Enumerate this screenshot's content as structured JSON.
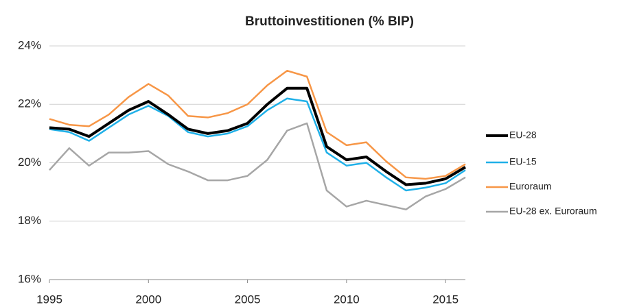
{
  "chart_data": {
    "type": "line",
    "title": "Bruttoinvestitionen (% BIP)",
    "x": [
      1995,
      1996,
      1997,
      1998,
      1999,
      2000,
      2001,
      2002,
      2003,
      2004,
      2005,
      2006,
      2007,
      2008,
      2009,
      2010,
      2011,
      2012,
      2013,
      2014,
      2015,
      2016
    ],
    "series": [
      {
        "name": "EU-28",
        "color": "#000000",
        "values": [
          21.2,
          21.15,
          20.9,
          21.35,
          21.8,
          22.1,
          21.65,
          21.15,
          21.0,
          21.1,
          21.35,
          22.0,
          22.55,
          22.55,
          20.55,
          20.1,
          20.2,
          19.7,
          19.25,
          19.3,
          19.45,
          19.85
        ]
      },
      {
        "name": "EU-15",
        "color": "#1fb0e8",
        "values": [
          21.15,
          21.05,
          20.75,
          21.2,
          21.65,
          21.95,
          21.6,
          21.05,
          20.9,
          21.0,
          21.25,
          21.8,
          22.2,
          22.1,
          20.35,
          19.9,
          20.0,
          19.5,
          19.05,
          19.15,
          19.3,
          19.75
        ]
      },
      {
        "name": "Euroraum",
        "color": "#f79646",
        "values": [
          21.5,
          21.3,
          21.25,
          21.65,
          22.25,
          22.7,
          22.3,
          21.6,
          21.55,
          21.7,
          22.0,
          22.65,
          23.15,
          22.95,
          21.05,
          20.6,
          20.7,
          20.05,
          19.5,
          19.45,
          19.55,
          19.95
        ]
      },
      {
        "name": "EU-28 ex. Euroraum",
        "color": "#a6a6a6",
        "values": [
          19.75,
          20.5,
          19.9,
          20.35,
          20.35,
          20.4,
          19.95,
          19.7,
          19.4,
          19.4,
          19.55,
          20.1,
          21.1,
          21.35,
          19.05,
          18.5,
          18.7,
          18.55,
          18.4,
          18.85,
          19.1,
          19.5
        ]
      }
    ],
    "xlim": [
      1995,
      2016
    ],
    "xticks": [
      1995,
      2000,
      2005,
      2010,
      2015
    ],
    "ylim": [
      16,
      24
    ],
    "yticks": [
      {
        "value": 16,
        "label": "16%"
      },
      {
        "value": 18,
        "label": "18%"
      },
      {
        "value": 20,
        "label": "20%"
      },
      {
        "value": 22,
        "label": "22%"
      },
      {
        "value": 24,
        "label": "24%"
      }
    ],
    "grid": true,
    "legend": "right"
  }
}
